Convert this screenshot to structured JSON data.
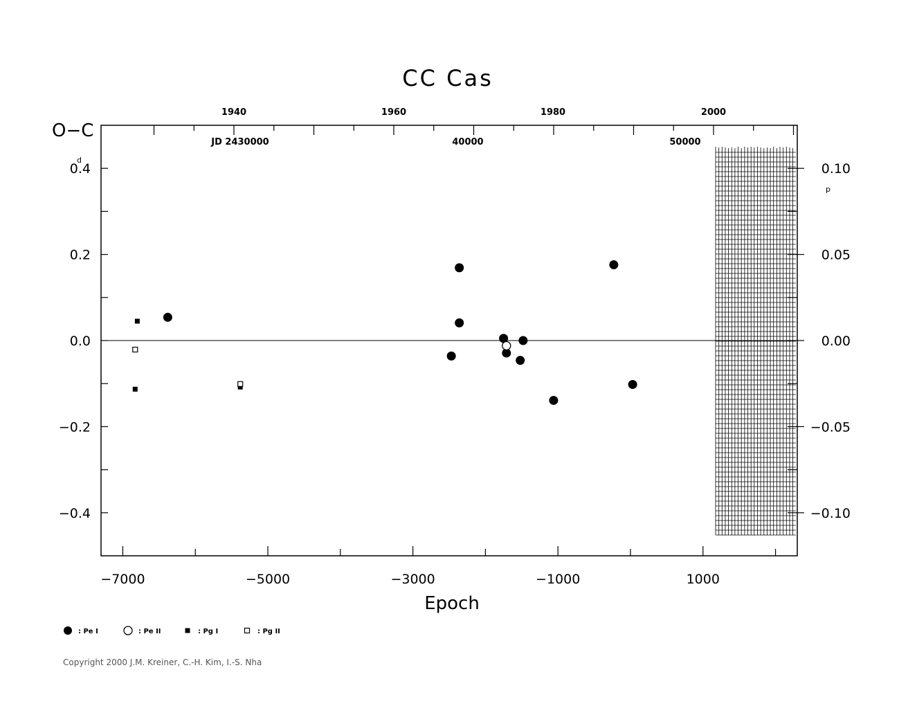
{
  "chart_data": {
    "type": "scatter",
    "title": "CC Cas",
    "xlabel": "Epoch",
    "ylabel": "O−C",
    "ylabel_unit": "d",
    "y2_unit": "p",
    "xlim": [
      -7300,
      2300
    ],
    "ylim": [
      -0.5,
      0.5
    ],
    "x_ticks": [
      "−7000",
      "−5000",
      "−3000",
      "−1000",
      "1000"
    ],
    "y_ticks": [
      "0.4",
      "0.2",
      "0.0",
      "−0.2",
      "−0.4"
    ],
    "y2_ticks": [
      "0.10",
      "0.05",
      "0.00",
      "−0.05",
      "−0.10"
    ],
    "top_year_ticks": [
      "1940",
      "1960",
      "1980",
      "2000"
    ],
    "top_jd_labels": [
      "JD  2430000",
      "40000",
      "50000"
    ],
    "grid": false,
    "zero_line": true,
    "legend_position": "bottom-left",
    "legend": [
      {
        "symbol": "filled-circle",
        "label": ": Pe  I"
      },
      {
        "symbol": "open-circle",
        "label": ": Pe  II"
      },
      {
        "symbol": "filled-square",
        "label": ": Pg  I"
      },
      {
        "symbol": "open-square",
        "label": ": Pg  II"
      }
    ],
    "series": [
      {
        "symbol": "filled-circle",
        "points": [
          [
            -6380,
            0.054
          ],
          [
            -2470,
            -0.036
          ],
          [
            -2360,
            0.169
          ],
          [
            -2360,
            0.041
          ],
          [
            -1750,
            0.005
          ],
          [
            -1710,
            -0.029
          ],
          [
            -1520,
            -0.046
          ],
          [
            -1480,
            0.0
          ],
          [
            -1060,
            -0.139
          ],
          [
            -230,
            0.176
          ],
          [
            30,
            -0.102
          ]
        ]
      },
      {
        "symbol": "open-circle",
        "points": [
          [
            -1710,
            -0.012
          ]
        ]
      },
      {
        "symbol": "filled-square",
        "points": [
          [
            -6800,
            0.045
          ],
          [
            -6830,
            -0.113
          ],
          [
            -5380,
            -0.108
          ]
        ]
      },
      {
        "symbol": "open-square",
        "points": [
          [
            -6830,
            -0.021
          ],
          [
            -5380,
            -0.101
          ]
        ]
      }
    ]
  },
  "copyright": "Copyright 2000 J.M. Kreiner, C.-H. Kim, I.-S. Nha"
}
